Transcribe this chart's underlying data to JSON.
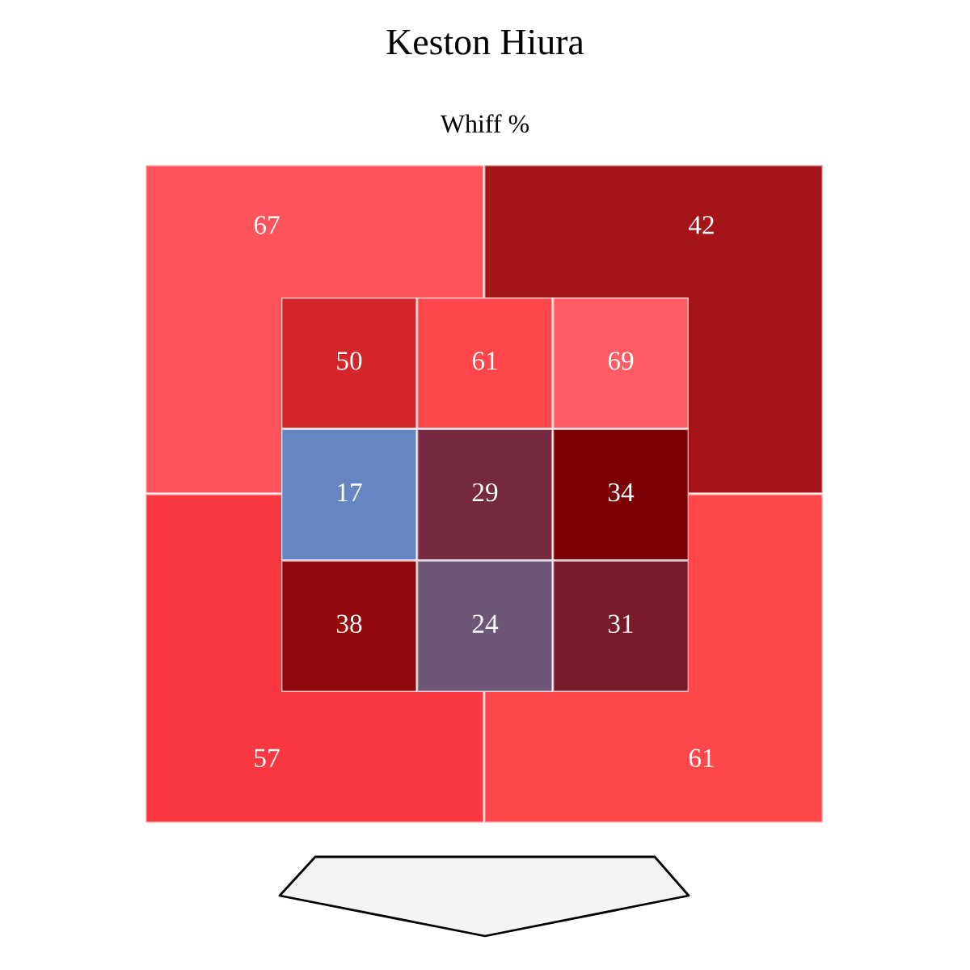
{
  "chart_data": [
    {
      "type": "heatmap",
      "title": "Keston Hiura",
      "subtitle": "Whiff %",
      "categories": [
        null,
        null,
        null
      ],
      "y_categories": [
        null,
        null,
        null
      ],
      "cells": [
        [
          50,
          61,
          69
        ],
        [
          17,
          29,
          34
        ],
        [
          38,
          24,
          31
        ]
      ],
      "colors": [
        [
          "#d4252a",
          "#fe464b",
          "#ff5b63"
        ],
        [
          "#6586c2",
          "#772a3f",
          "#7c0204"
        ],
        [
          "#93080b",
          "#6d5677",
          "#771b28"
        ]
      ],
      "data_labels": true
    },
    {
      "type": "heatmap",
      "categories": [
        null,
        null
      ],
      "y_categories": [
        null,
        null
      ],
      "cells": [
        [
          67,
          42
        ],
        [
          57,
          61
        ]
      ],
      "colors": [
        [
          "#fe535a",
          "#a51417"
        ],
        [
          "#f93841",
          "#fe464b"
        ]
      ],
      "data_labels": true
    }
  ]
}
